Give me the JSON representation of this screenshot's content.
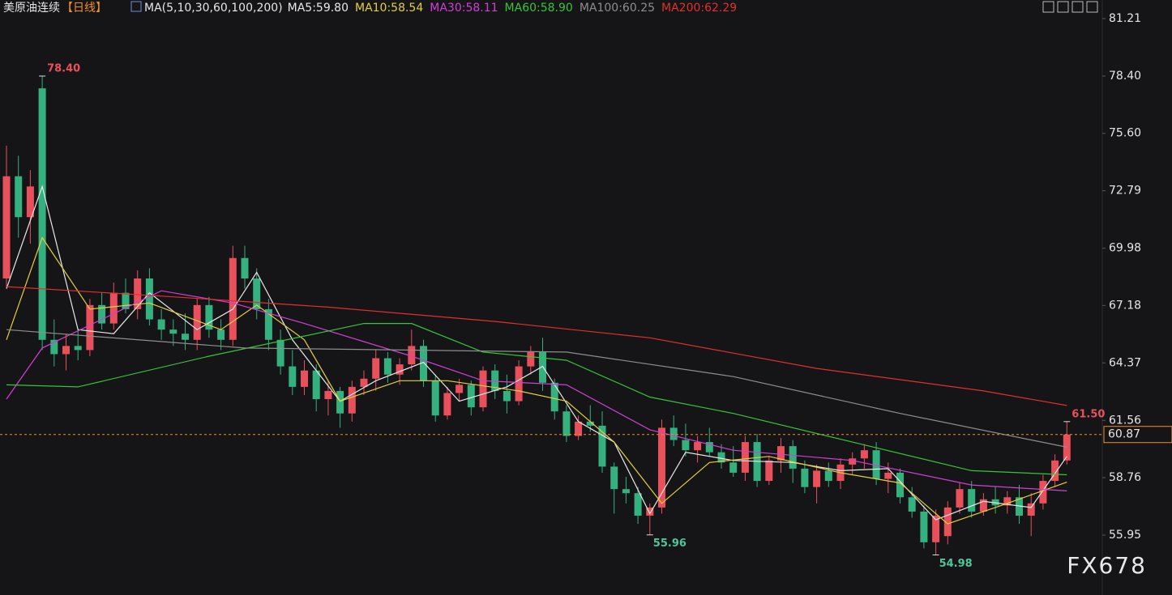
{
  "chart_data": {
    "type": "candlestick",
    "title": "美原油连续",
    "period": "【日线】",
    "indicator": "MA(5,10,30,60,100,200)",
    "watermark": "FX678",
    "up_color": "#e8515c",
    "down_color": "#35b07f",
    "ylim": [
      53.02,
      82.12
    ],
    "yticks": [
      81.21,
      {
        "value": 78.4,
        "label": "78.40"
      },
      {
        "value": 75.6,
        "label": "75.60"
      },
      72.79,
      69.98,
      67.18,
      64.37,
      61.56,
      58.76,
      55.95
    ],
    "ohlc": [
      [
        68.5,
        75.0,
        68.0,
        73.5
      ],
      [
        73.5,
        74.5,
        70.5,
        71.5
      ],
      [
        71.5,
        73.8,
        70.2,
        73.0
      ],
      [
        77.8,
        78.4,
        65.0,
        65.5
      ],
      [
        65.5,
        66.5,
        64.2,
        64.8
      ],
      [
        64.8,
        65.8,
        64.0,
        65.2
      ],
      [
        65.2,
        66.0,
        64.5,
        65.0
      ],
      [
        65.0,
        67.5,
        64.7,
        67.2
      ],
      [
        67.2,
        67.8,
        66.0,
        66.3
      ],
      [
        66.3,
        68.3,
        66.0,
        67.8
      ],
      [
        67.8,
        68.5,
        66.8,
        67.0
      ],
      [
        67.0,
        68.9,
        66.5,
        68.5
      ],
      [
        68.5,
        69.0,
        66.2,
        66.5
      ],
      [
        66.5,
        67.0,
        65.5,
        66.0
      ],
      [
        66.0,
        66.5,
        65.2,
        65.8
      ],
      [
        65.8,
        66.8,
        65.0,
        65.5
      ],
      [
        65.5,
        67.5,
        65.0,
        67.2
      ],
      [
        67.2,
        67.6,
        65.6,
        66.0
      ],
      [
        66.0,
        66.5,
        65.0,
        65.5
      ],
      [
        65.5,
        70.1,
        65.2,
        69.5
      ],
      [
        69.5,
        70.1,
        68.0,
        68.5
      ],
      [
        68.5,
        69.0,
        66.5,
        67.0
      ],
      [
        67.0,
        67.5,
        65.0,
        65.5
      ],
      [
        65.5,
        66.0,
        63.8,
        64.2
      ],
      [
        64.2,
        65.0,
        62.8,
        63.2
      ],
      [
        63.2,
        64.5,
        62.8,
        64.0
      ],
      [
        64.0,
        64.3,
        62.0,
        62.6
      ],
      [
        62.6,
        63.5,
        61.8,
        63.0
      ],
      [
        63.0,
        63.2,
        61.2,
        61.9
      ],
      [
        61.9,
        63.5,
        61.5,
        63.2
      ],
      [
        63.2,
        64.0,
        62.8,
        63.6
      ],
      [
        63.6,
        65.0,
        63.0,
        64.6
      ],
      [
        64.6,
        64.9,
        63.4,
        63.8
      ],
      [
        63.8,
        64.6,
        63.3,
        64.3
      ],
      [
        64.3,
        66.0,
        64.0,
        65.2
      ],
      [
        65.2,
        65.5,
        63.2,
        63.5
      ],
      [
        63.5,
        63.8,
        61.5,
        61.8
      ],
      [
        61.8,
        63.2,
        61.6,
        62.9
      ],
      [
        62.9,
        63.6,
        62.5,
        63.3
      ],
      [
        63.3,
        63.5,
        61.8,
        62.2
      ],
      [
        62.2,
        64.2,
        62.0,
        64.0
      ],
      [
        64.0,
        64.3,
        62.6,
        63.0
      ],
      [
        63.0,
        63.8,
        61.9,
        62.5
      ],
      [
        62.5,
        64.5,
        62.3,
        64.2
      ],
      [
        64.2,
        65.2,
        63.8,
        64.9
      ],
      [
        64.9,
        65.6,
        63.0,
        63.4
      ],
      [
        63.4,
        63.6,
        61.6,
        62.0
      ],
      [
        62.0,
        62.3,
        60.5,
        60.8
      ],
      [
        60.8,
        61.8,
        60.6,
        61.5
      ],
      [
        61.5,
        62.3,
        61.0,
        61.3
      ],
      [
        61.3,
        62.0,
        59.0,
        59.3
      ],
      [
        59.3,
        59.5,
        57.0,
        58.2
      ],
      [
        58.2,
        58.8,
        57.5,
        58.0
      ],
      [
        58.0,
        58.3,
        56.5,
        56.9
      ],
      [
        56.9,
        57.5,
        55.96,
        57.3
      ],
      [
        57.3,
        61.6,
        57.0,
        61.2
      ],
      [
        61.2,
        61.8,
        60.3,
        60.6
      ],
      [
        60.6,
        61.4,
        59.8,
        60.1
      ],
      [
        60.1,
        60.8,
        59.5,
        60.5
      ],
      [
        60.5,
        61.2,
        59.8,
        60.0
      ],
      [
        60.0,
        60.4,
        59.2,
        59.5
      ],
      [
        59.5,
        60.3,
        58.8,
        59.0
      ],
      [
        59.0,
        60.8,
        58.6,
        60.5
      ],
      [
        60.5,
        60.9,
        58.3,
        58.6
      ],
      [
        58.6,
        59.8,
        58.4,
        59.6
      ],
      [
        59.6,
        60.7,
        59.0,
        60.3
      ],
      [
        60.3,
        60.6,
        58.5,
        59.2
      ],
      [
        59.2,
        59.6,
        58.0,
        58.3
      ],
      [
        58.3,
        59.4,
        57.5,
        59.1
      ],
      [
        59.1,
        59.5,
        58.3,
        58.6
      ],
      [
        58.6,
        59.7,
        58.2,
        59.4
      ],
      [
        59.4,
        60.0,
        58.9,
        59.7
      ],
      [
        59.7,
        60.4,
        59.2,
        60.1
      ],
      [
        60.1,
        60.5,
        58.4,
        58.7
      ],
      [
        58.7,
        59.5,
        58.0,
        59.0
      ],
      [
        59.0,
        59.2,
        57.5,
        57.8
      ],
      [
        57.8,
        58.3,
        56.8,
        57.1
      ],
      [
        57.1,
        57.4,
        55.3,
        55.6
      ],
      [
        55.6,
        57.2,
        54.98,
        56.9
      ],
      [
        55.9,
        57.6,
        55.5,
        57.3
      ],
      [
        57.3,
        58.5,
        57.0,
        58.2
      ],
      [
        58.2,
        58.6,
        56.8,
        57.1
      ],
      [
        57.1,
        58.0,
        56.9,
        57.7
      ],
      [
        57.7,
        58.3,
        57.0,
        57.4
      ],
      [
        57.4,
        58.1,
        57.0,
        57.8
      ],
      [
        57.8,
        58.4,
        56.5,
        56.9
      ],
      [
        56.9,
        58.0,
        55.9,
        57.5
      ],
      [
        57.5,
        58.9,
        57.2,
        58.6
      ],
      [
        58.6,
        59.9,
        58.3,
        59.6
      ],
      [
        59.6,
        61.5,
        59.4,
        60.87
      ]
    ],
    "series": [
      {
        "name": "MA5:59.80",
        "color": "#e8e8e8",
        "x": [
          0,
          3,
          6,
          9,
          12,
          16,
          19,
          21,
          24,
          28,
          31,
          35,
          38,
          42,
          45,
          48,
          51,
          54,
          57,
          61,
          66,
          70,
          74,
          78,
          82,
          86,
          89
        ],
        "values": [
          68,
          73,
          66,
          65.8,
          67.8,
          66,
          67,
          68.8,
          65.5,
          62.5,
          63.5,
          64.4,
          62.5,
          63.2,
          64.2,
          61.5,
          60.5,
          57,
          60,
          59.6,
          59.5,
          59.1,
          59.2,
          56.7,
          57.6,
          57.3,
          59.8
        ]
      },
      {
        "name": "MA10:58.54",
        "color": "#e3cf3a",
        "x": [
          0,
          3,
          7,
          12,
          18,
          21,
          25,
          28,
          33,
          37,
          43,
          47,
          51,
          55,
          59,
          64,
          70,
          75,
          79,
          84,
          89
        ],
        "values": [
          65.5,
          70.5,
          67,
          67.3,
          66,
          67.2,
          65.5,
          62.5,
          63.5,
          63.5,
          63,
          62.5,
          60.5,
          57.5,
          59.5,
          59.8,
          59,
          58.5,
          56.5,
          57.5,
          58.54
        ]
      },
      {
        "name": "MA30:58.11",
        "color": "#d23fd5",
        "x": [
          0,
          3,
          13,
          19,
          25,
          34,
          40,
          47,
          54,
          61,
          71,
          81,
          89
        ],
        "values": [
          62.6,
          65.1,
          67.9,
          67.3,
          66.3,
          64.7,
          63.5,
          63.3,
          61.1,
          60.1,
          59.6,
          58.4,
          58.11
        ]
      },
      {
        "name": "MA60:58.90",
        "color": "#36c53a",
        "x": [
          0,
          6,
          17,
          30,
          34,
          40,
          47,
          54,
          61,
          71,
          81,
          89
        ],
        "values": [
          63.3,
          63.2,
          64.7,
          66.3,
          66.3,
          64.9,
          64.5,
          62.7,
          61.9,
          60.5,
          59.1,
          58.9
        ]
      },
      {
        "name": "MA100:60.25",
        "color": "#8e8e8e",
        "x": [
          0,
          20,
          47,
          61,
          75,
          89
        ],
        "values": [
          66,
          65.1,
          64.9,
          63.7,
          61.9,
          60.25
        ]
      },
      {
        "name": "MA200:62.29",
        "color": "#e0302e",
        "x": [
          0,
          14,
          27,
          41,
          54,
          68,
          82,
          89
        ],
        "values": [
          68.1,
          67.6,
          67.1,
          66.4,
          65.6,
          64.1,
          63,
          62.29
        ]
      }
    ],
    "annotations": [
      {
        "label": "78.40",
        "value": 78.4
      },
      {
        "label": "55.96",
        "value": 55.96
      },
      {
        "label": "54.98",
        "value": 54.98
      },
      {
        "label": "61.50",
        "value": 61.5
      }
    ],
    "last_price": {
      "label": "60.87",
      "value": 60.87,
      "color": "#f0902a"
    }
  }
}
